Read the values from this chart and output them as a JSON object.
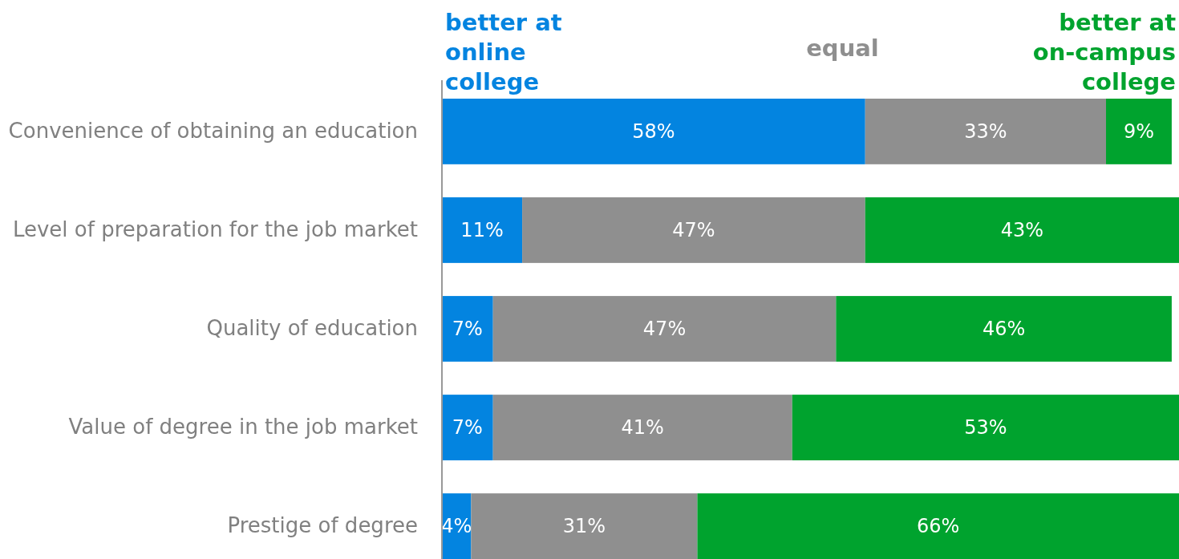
{
  "chart_data": {
    "type": "bar",
    "orientation": "horizontal",
    "stacked": true,
    "legend": "top",
    "xlim": [
      0,
      101
    ],
    "tick_labels": "y",
    "categories": [
      "Convenience of obtaining an education",
      "Level of preparation for the job market",
      "Quality of education",
      "Value of degree in the job market",
      "Prestige of degree"
    ],
    "series": [
      {
        "name": "better at online college",
        "color": "#0384e0",
        "values": [
          58,
          11,
          7,
          7,
          4
        ],
        "value_labels": [
          "58%",
          "11%",
          "7%",
          "7%",
          "4%"
        ]
      },
      {
        "name": "equal",
        "color": "#8f8f8f",
        "values": [
          33,
          47,
          47,
          41,
          31
        ],
        "value_labels": [
          "33%",
          "47%",
          "47%",
          "41%",
          "31%"
        ]
      },
      {
        "name": "better at on-campus college",
        "color": "#00a32e",
        "values": [
          9,
          43,
          46,
          53,
          66
        ],
        "value_labels": [
          "9%",
          "43%",
          "46%",
          "53%",
          "66%"
        ]
      }
    ]
  }
}
